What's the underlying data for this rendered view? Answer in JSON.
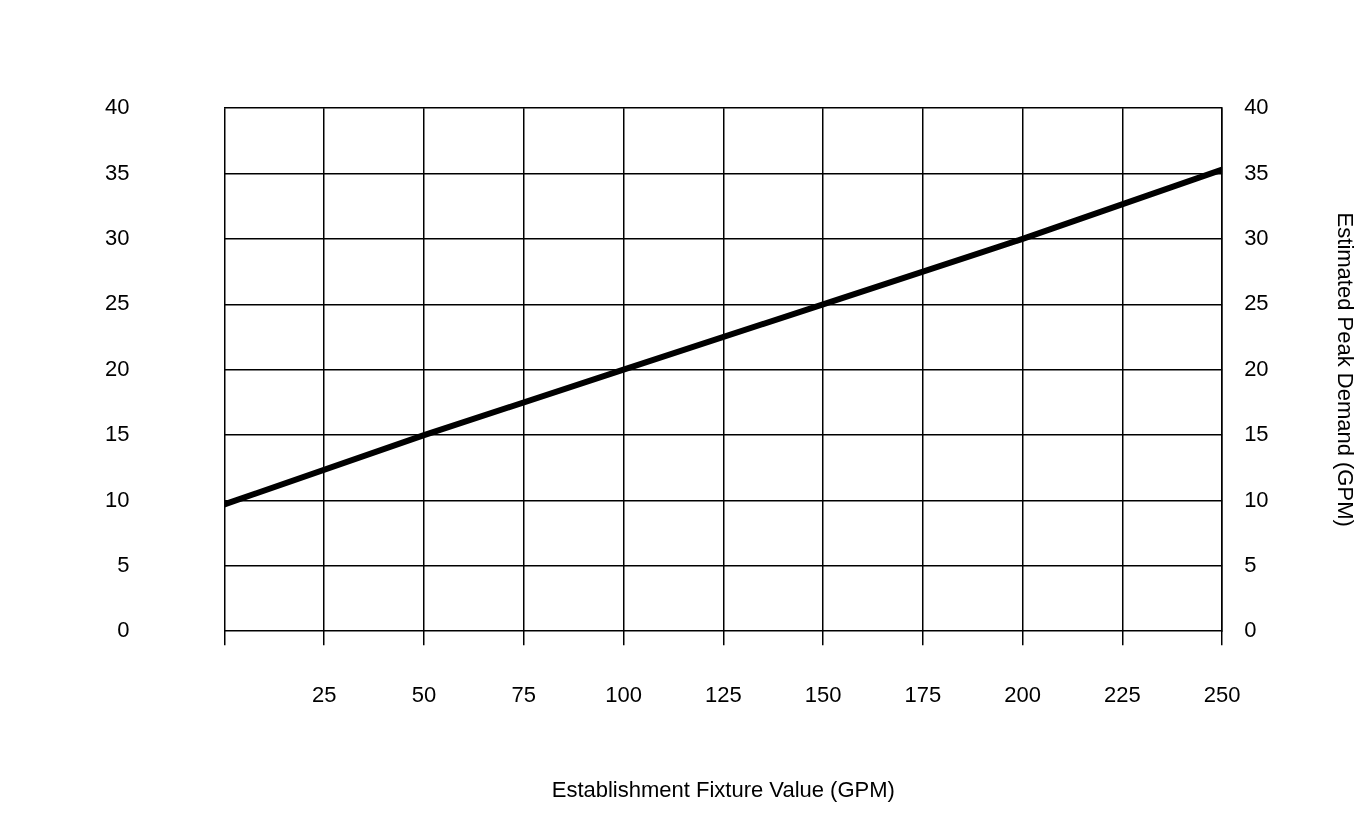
{
  "chart_data": {
    "type": "line",
    "xlabel": "Establishment Fixture Value (GPM)",
    "y2label": "Estimated Peak Demand (GPM)",
    "x": [
      0,
      50,
      100,
      150,
      200,
      250
    ],
    "series": [
      {
        "color": "#000000",
        "values": [
          9.7,
          15,
          20,
          25,
          30,
          35.3
        ]
      }
    ],
    "xlim": [
      0,
      250
    ],
    "xticks": [
      {
        "value": 0,
        "label": null
      },
      25,
      50,
      75,
      100,
      125,
      150,
      175,
      200,
      225,
      250
    ],
    "ylim": [
      0,
      40
    ],
    "yticks": [
      0,
      5,
      10,
      15,
      20,
      25,
      30,
      35,
      40
    ],
    "y2lim": [
      0,
      40
    ],
    "y2ticks": [
      0,
      5,
      10,
      15,
      20,
      25,
      30,
      35,
      40
    ],
    "grid": true,
    "legend": false,
    "marker": "none",
    "line_style": "solid"
  }
}
